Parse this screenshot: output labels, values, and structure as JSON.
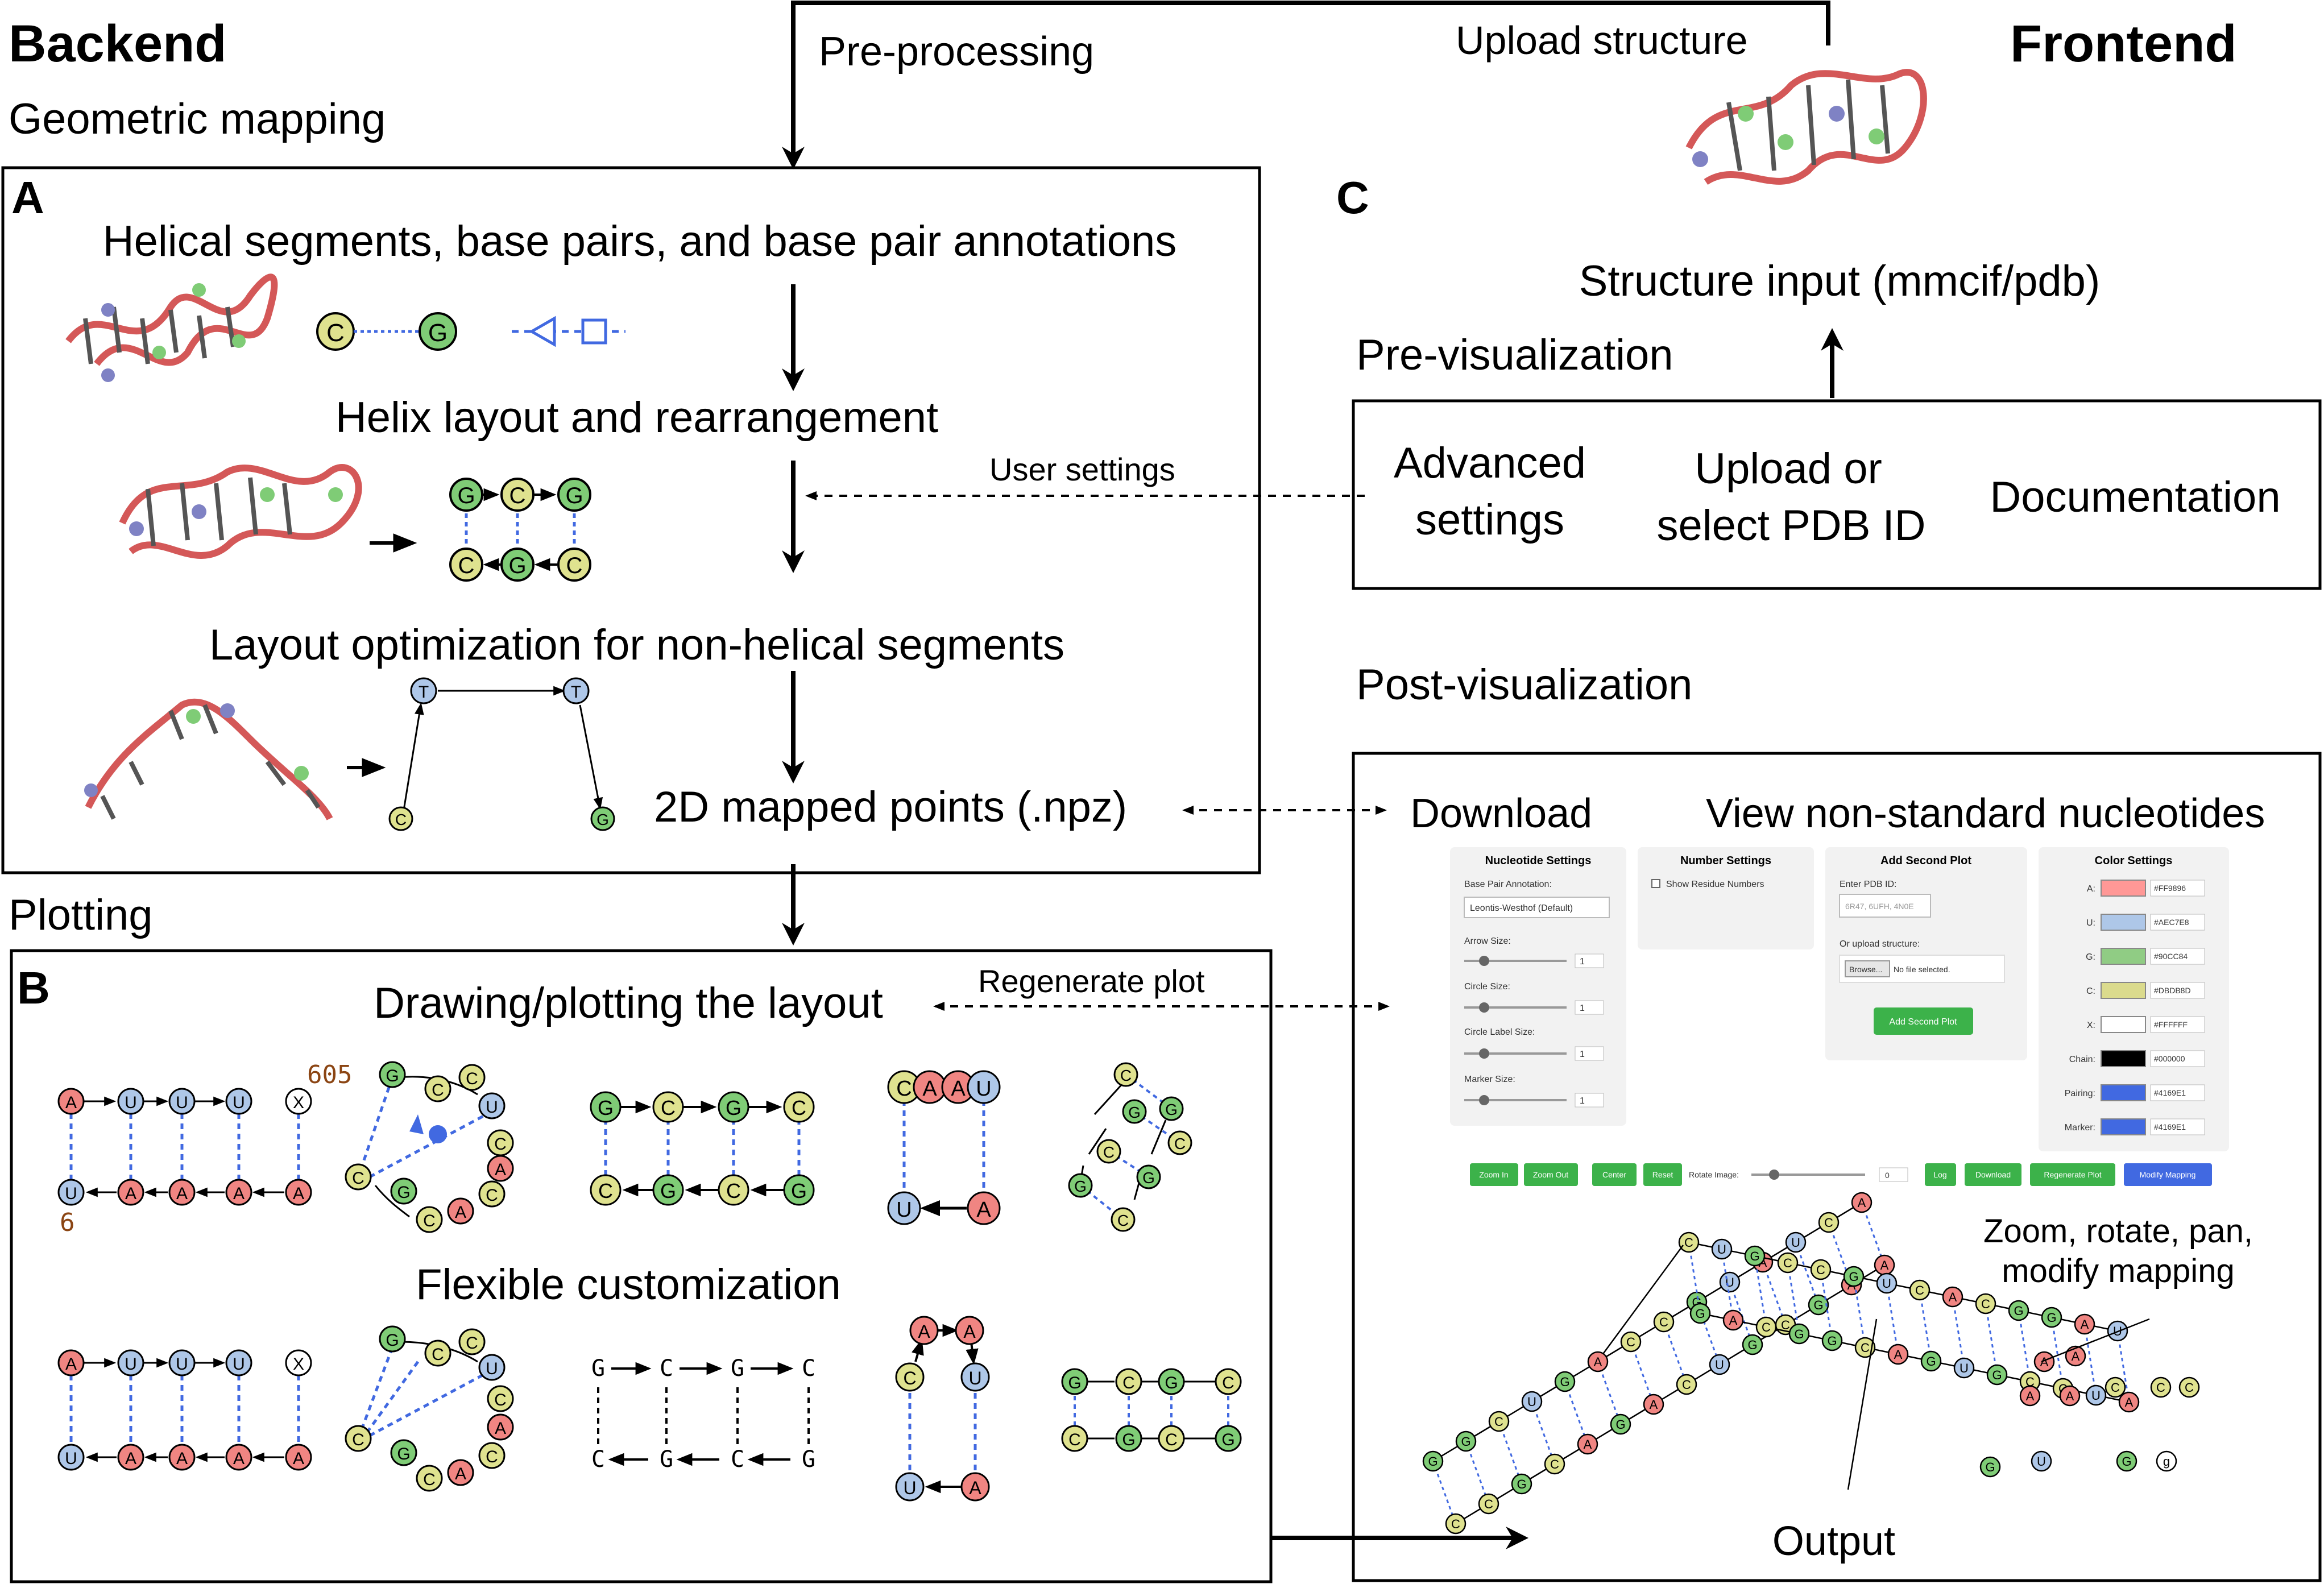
{
  "headers": {
    "backend": "Backend",
    "frontend": "Frontend",
    "geometric_mapping": "Geometric mapping",
    "plotting": "Plotting",
    "pre_processing": "Pre-processing",
    "upload_structure": "Upload structure",
    "pre_visualization": "Pre-visualization",
    "post_visualization": "Post-visualization"
  },
  "panel_a": {
    "label": "A",
    "step1": "Helical segments, base pairs, and base pair annotations",
    "step2": "Helix layout and rearrangement",
    "step3": "Layout optimization for non-helical segments",
    "step4": "2D mapped points (.npz)",
    "user_settings": "User settings"
  },
  "panel_b": {
    "label": "B",
    "title": "Drawing/plotting the layout",
    "regenerate": "Regenerate plot",
    "flexible": "Flexible customization",
    "num_605": "605",
    "num_6": "6"
  },
  "panel_c": {
    "label": "C",
    "structure_input": "Structure input (mmcif/pdb)",
    "advanced_line1": "Advanced",
    "advanced_line2": "settings",
    "upload_line1": "Upload or",
    "upload_line2": "select PDB ID",
    "documentation": "Documentation",
    "download": "Download",
    "view_nonstandard": "View non-standard nucleotides",
    "zoom_line1": "Zoom, rotate, pan,",
    "zoom_line2": "modify mapping",
    "output": "Output"
  },
  "ui": {
    "nucleotide_settings": {
      "title": "Nucleotide Settings",
      "bp_annotation_label": "Base Pair Annotation:",
      "bp_annotation_value": "Leontis-Westhof (Default)",
      "arrow_size": "Arrow Size:",
      "circle_size": "Circle Size:",
      "circle_label_size": "Circle Label Size:",
      "marker_size": "Marker Size:",
      "slider_value": "1"
    },
    "number_settings": {
      "title": "Number Settings",
      "show_residue": "Show Residue Numbers"
    },
    "add_second_plot": {
      "title": "Add Second Plot",
      "enter_pdb": "Enter PDB ID:",
      "placeholder": "6R47, 6UFH, 4N0E",
      "or_upload": "Or upload structure:",
      "browse": "Browse...",
      "no_file": "No file selected.",
      "button": "Add Second Plot"
    },
    "color_settings": {
      "title": "Color Settings",
      "items": [
        {
          "label": "A:",
          "hex": "#FF9896",
          "color": "#ff9896"
        },
        {
          "label": "U:",
          "hex": "#AEC7E8",
          "color": "#aec7e8"
        },
        {
          "label": "G:",
          "hex": "#90CC84",
          "color": "#90cc84"
        },
        {
          "label": "C:",
          "hex": "#DBDB8D",
          "color": "#dbdb8d"
        },
        {
          "label": "X:",
          "hex": "#FFFFFF",
          "color": "#ffffff"
        },
        {
          "label": "Chain:",
          "hex": "#000000",
          "color": "#000000"
        },
        {
          "label": "Pairing:",
          "hex": "#4169E1",
          "color": "#4169e1"
        },
        {
          "label": "Marker:",
          "hex": "#4169E1",
          "color": "#4169e1"
        }
      ]
    },
    "toolbar": {
      "zoom_in": "Zoom In",
      "zoom_out": "Zoom Out",
      "center": "Center",
      "reset": "Reset",
      "rotate_label": "Rotate Image:",
      "rotate_value": "0",
      "log": "Log",
      "download": "Download",
      "regenerate": "Regenerate Plot",
      "modify": "Modify Mapping"
    }
  },
  "nucleotides": {
    "A": "A",
    "U": "U",
    "G": "G",
    "C": "C",
    "X": "X",
    "T": "T",
    "g": "g"
  },
  "colors": {
    "A": "#f08582",
    "U": "#aec7e8",
    "G": "#7fcc76",
    "C": "#dfe28f",
    "X": "#ffffff",
    "pair": "#4169e1",
    "backbone": "#000000",
    "ribbon": "#e26a6a",
    "button_green": "#3cb24a",
    "button_blue": "#4169e1"
  }
}
